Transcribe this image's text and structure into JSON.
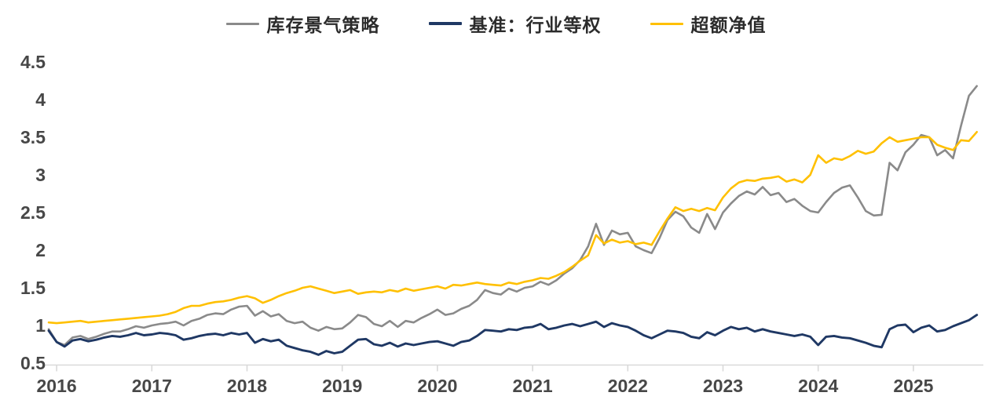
{
  "chart_data": {
    "type": "line",
    "title": "",
    "xlabel": "",
    "ylabel": "",
    "grid": false,
    "legend_position": "top-center",
    "axis_color": "#d9d9d9",
    "tick_label_color": "#474747",
    "x_axis": {
      "tick_labels": [
        "2016",
        "2017",
        "2018",
        "2019",
        "2020",
        "2021",
        "2022",
        "2023",
        "2024",
        "2025"
      ]
    },
    "y_axis": {
      "tick_labels": [
        "4.5",
        "4",
        "3.5",
        "3",
        "2.5",
        "2",
        "1.5",
        "1",
        "0.5"
      ],
      "tick_values": [
        4.5,
        4,
        3.5,
        3,
        2.5,
        2,
        1.5,
        1,
        0.5
      ],
      "min": 0.5,
      "max": 4.5
    },
    "ylim": [
      0.5,
      4.5
    ],
    "x_start": "2015-12",
    "x_end": "2025-09",
    "frequency": "monthly",
    "series": [
      {
        "key": "strategy",
        "name": "库存景气策略",
        "color": "#8a8a8a",
        "stroke_width": 2.6,
        "values": [
          0.95,
          0.78,
          0.74,
          0.84,
          0.86,
          0.82,
          0.85,
          0.89,
          0.92,
          0.92,
          0.95,
          0.99,
          0.97,
          1.0,
          1.02,
          1.03,
          1.05,
          1.0,
          1.06,
          1.09,
          1.14,
          1.16,
          1.15,
          1.21,
          1.25,
          1.26,
          1.13,
          1.19,
          1.12,
          1.15,
          1.06,
          1.03,
          1.05,
          0.97,
          0.93,
          0.98,
          0.95,
          0.96,
          1.04,
          1.14,
          1.11,
          1.02,
          0.99,
          1.06,
          0.98,
          1.06,
          1.04,
          1.1,
          1.15,
          1.21,
          1.14,
          1.16,
          1.22,
          1.26,
          1.34,
          1.47,
          1.43,
          1.41,
          1.49,
          1.45,
          1.5,
          1.52,
          1.58,
          1.54,
          1.6,
          1.69,
          1.76,
          1.87,
          2.05,
          2.35,
          2.07,
          2.26,
          2.21,
          2.23,
          2.05,
          2.0,
          1.96,
          2.16,
          2.4,
          2.51,
          2.45,
          2.3,
          2.23,
          2.48,
          2.28,
          2.5,
          2.62,
          2.72,
          2.78,
          2.74,
          2.84,
          2.73,
          2.76,
          2.64,
          2.68,
          2.59,
          2.52,
          2.5,
          2.64,
          2.76,
          2.83,
          2.86,
          2.7,
          2.52,
          2.46,
          2.47,
          3.16,
          3.06,
          3.3,
          3.4,
          3.53,
          3.5,
          3.26,
          3.33,
          3.22,
          3.65,
          4.05,
          4.18
        ]
      },
      {
        "key": "benchmark",
        "name": "基准：行业等权",
        "color": "#1f3864",
        "stroke_width": 2.9,
        "values": [
          0.93,
          0.78,
          0.72,
          0.8,
          0.82,
          0.79,
          0.81,
          0.84,
          0.86,
          0.85,
          0.87,
          0.9,
          0.87,
          0.88,
          0.9,
          0.89,
          0.87,
          0.81,
          0.83,
          0.86,
          0.88,
          0.89,
          0.87,
          0.9,
          0.88,
          0.9,
          0.77,
          0.82,
          0.79,
          0.81,
          0.73,
          0.7,
          0.67,
          0.65,
          0.61,
          0.66,
          0.63,
          0.65,
          0.73,
          0.81,
          0.82,
          0.75,
          0.73,
          0.77,
          0.72,
          0.76,
          0.74,
          0.76,
          0.78,
          0.79,
          0.76,
          0.73,
          0.78,
          0.8,
          0.86,
          0.94,
          0.93,
          0.92,
          0.95,
          0.94,
          0.97,
          0.98,
          1.02,
          0.95,
          0.97,
          1.0,
          1.02,
          0.99,
          1.02,
          1.05,
          0.98,
          1.03,
          1.0,
          0.98,
          0.93,
          0.87,
          0.83,
          0.88,
          0.93,
          0.92,
          0.9,
          0.85,
          0.83,
          0.91,
          0.87,
          0.93,
          0.98,
          0.95,
          0.97,
          0.92,
          0.95,
          0.92,
          0.9,
          0.88,
          0.86,
          0.88,
          0.85,
          0.74,
          0.85,
          0.86,
          0.84,
          0.83,
          0.8,
          0.77,
          0.73,
          0.71,
          0.95,
          1.0,
          1.01,
          0.91,
          0.97,
          1.0,
          0.92,
          0.94,
          0.99,
          1.03,
          1.07,
          1.14
        ]
      },
      {
        "key": "excess",
        "name": "超额净值",
        "color": "#ffc000",
        "stroke_width": 2.6,
        "values": [
          1.04,
          1.03,
          1.04,
          1.05,
          1.06,
          1.04,
          1.05,
          1.06,
          1.07,
          1.08,
          1.09,
          1.1,
          1.11,
          1.12,
          1.13,
          1.15,
          1.18,
          1.23,
          1.26,
          1.26,
          1.29,
          1.31,
          1.32,
          1.34,
          1.37,
          1.39,
          1.36,
          1.3,
          1.34,
          1.39,
          1.43,
          1.46,
          1.5,
          1.52,
          1.49,
          1.46,
          1.43,
          1.45,
          1.47,
          1.42,
          1.44,
          1.45,
          1.44,
          1.47,
          1.45,
          1.49,
          1.46,
          1.48,
          1.5,
          1.52,
          1.49,
          1.54,
          1.53,
          1.55,
          1.57,
          1.55,
          1.54,
          1.53,
          1.57,
          1.55,
          1.58,
          1.6,
          1.63,
          1.62,
          1.66,
          1.71,
          1.78,
          1.86,
          1.93,
          2.2,
          2.09,
          2.14,
          2.1,
          2.12,
          2.08,
          2.1,
          2.07,
          2.25,
          2.42,
          2.57,
          2.52,
          2.55,
          2.52,
          2.56,
          2.53,
          2.7,
          2.82,
          2.9,
          2.93,
          2.92,
          2.95,
          2.96,
          2.98,
          2.91,
          2.94,
          2.9,
          3.0,
          3.26,
          3.16,
          3.22,
          3.2,
          3.25,
          3.32,
          3.28,
          3.31,
          3.42,
          3.5,
          3.44,
          3.46,
          3.48,
          3.5,
          3.5,
          3.4,
          3.36,
          3.33,
          3.46,
          3.45,
          3.57
        ]
      }
    ]
  }
}
